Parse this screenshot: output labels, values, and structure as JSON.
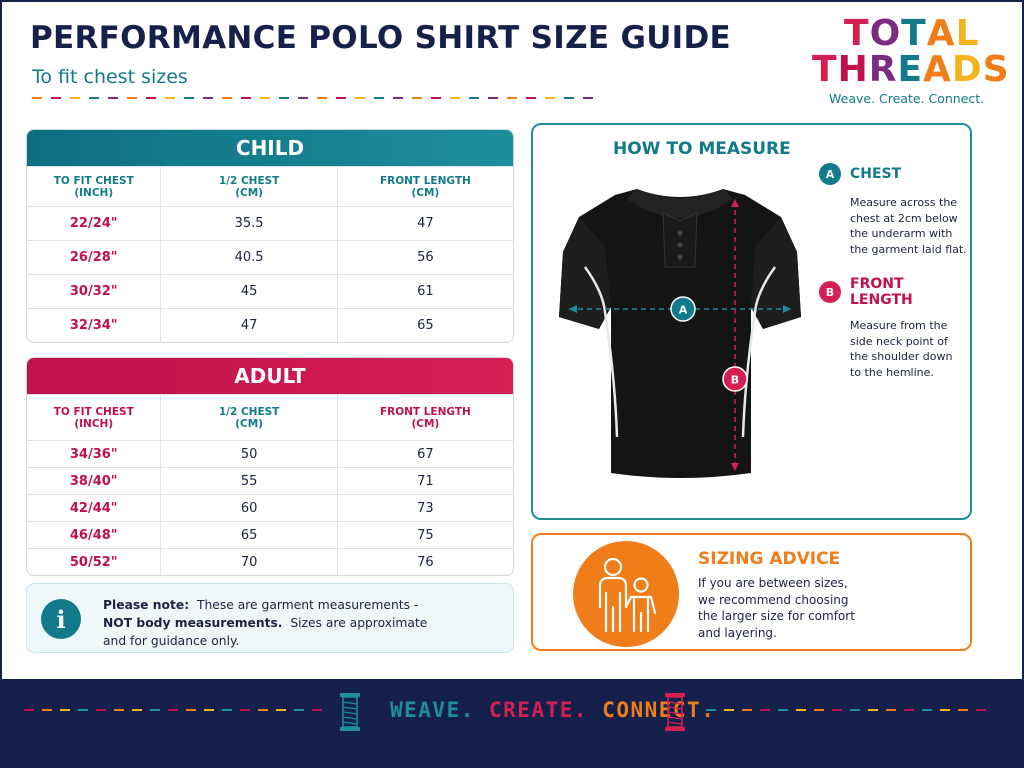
{
  "header": {
    "title": "PERFORMANCE POLO SHIRT SIZE GUIDE",
    "subtitle": "To fit chest sizes"
  },
  "logo": {
    "line1": [
      "T",
      "O",
      "T",
      "A",
      "L"
    ],
    "line2": [
      "T",
      "H",
      "R",
      "E",
      "A",
      "D",
      "S"
    ],
    "tagline": "Weave. Create. Connect."
  },
  "colors": {
    "navy": "#16214a",
    "teal": "#127a8a",
    "crimson": "#c0114b",
    "orange": "#ef7d1a",
    "yellow": "#f2b51d",
    "purple": "#7a2c7f"
  },
  "child_table": {
    "heading": "CHILD",
    "columns": [
      [
        "TO FIT CHEST",
        "(INCH)"
      ],
      [
        "1/2 CHEST",
        "(CM)"
      ],
      [
        "FRONT LENGTH",
        "(CM)"
      ]
    ],
    "rows": [
      [
        "22/24\"",
        "35.5",
        "47"
      ],
      [
        "26/28\"",
        "40.5",
        "56"
      ],
      [
        "30/32\"",
        "45",
        "61"
      ],
      [
        "32/34\"",
        "47",
        "65"
      ]
    ]
  },
  "adult_table": {
    "heading": "ADULT",
    "columns": [
      [
        "TO FIT CHEST",
        "(INCH)"
      ],
      [
        "1/2 CHEST",
        "(CM)"
      ],
      [
        "FRONT LENGTH",
        "(CM)"
      ]
    ],
    "rows": [
      [
        "34/36\"",
        "50",
        "67"
      ],
      [
        "38/40\"",
        "55",
        "71"
      ],
      [
        "42/44\"",
        "60",
        "73"
      ],
      [
        "46/48\"",
        "65",
        "75"
      ],
      [
        "50/52\"",
        "70",
        "76"
      ]
    ]
  },
  "note": {
    "icon": "info-icon",
    "icon_glyph": "i",
    "lead": "Please note:",
    "text1": "These are garment measurements -",
    "bold2": "NOT body measurements.",
    "text2": "Sizes are approximate",
    "text3": "and for guidance only."
  },
  "measure": {
    "title": "HOW TO MEASURE",
    "marker_a": "A",
    "marker_b": "B",
    "chest": {
      "badge": "A",
      "title": "CHEST",
      "lines": [
        "Measure across the",
        "chest at 2cm below",
        "the underarm with",
        "the garment laid flat."
      ]
    },
    "length": {
      "badge": "B",
      "title": "FRONT LENGTH",
      "lines": [
        "Measure from the",
        "side neck point of",
        "the shoulder down",
        "to the hemline."
      ]
    }
  },
  "advice": {
    "title": "SIZING ADVICE",
    "lines": [
      "If you are between sizes,",
      "we recommend choosing",
      "the larger size for comfort",
      "and layering."
    ]
  },
  "footer": {
    "weave": "WEAVE.",
    "create": "CREATE.",
    "connect": "CONNECT."
  }
}
